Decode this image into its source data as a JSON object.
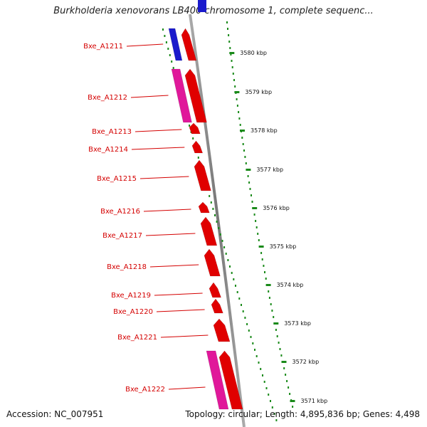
{
  "title": "Burkholderia xenovorans LB400 chromosome 1, complete sequenc...",
  "footer": {
    "accession": "Accession: NC_007951",
    "topology": "Topology: circular; Length: 4,895,836 bp; Genes: 4,498"
  },
  "ticks": [
    "3580 kbp",
    "3579 kbp",
    "3578 kbp",
    "3577 kbp",
    "3576 kbp",
    "3575 kbp",
    "3574 kbp",
    "3573 kbp",
    "3572 kbp",
    "3571 kbp"
  ],
  "genes": [
    {
      "label": "Bxe_A1211",
      "strand": "minus-pair",
      "colors": [
        "#1a1acc",
        "#e00000"
      ]
    },
    {
      "label": "Bxe_A1212",
      "strand": "minus-pair",
      "colors": [
        "#e0189a",
        "#e00000"
      ]
    },
    {
      "label": "Bxe_A1213",
      "colors": [
        "#e00000"
      ]
    },
    {
      "label": "Bxe_A1214",
      "colors": [
        "#e00000"
      ]
    },
    {
      "label": "Bxe_A1215",
      "colors": [
        "#e00000"
      ]
    },
    {
      "label": "Bxe_A1216",
      "colors": [
        "#e00000"
      ]
    },
    {
      "label": "Bxe_A1217",
      "colors": [
        "#e00000"
      ]
    },
    {
      "label": "Bxe_A1218",
      "colors": [
        "#e00000"
      ]
    },
    {
      "label": "Bxe_A1219",
      "colors": [
        "#e00000"
      ]
    },
    {
      "label": "Bxe_A1220",
      "colors": [
        "#e00000"
      ]
    },
    {
      "label": "Bxe_A1221",
      "colors": [
        "#e00000"
      ]
    },
    {
      "label": "Bxe_A1222",
      "colors": [
        "#e0189a",
        "#e00000"
      ]
    }
  ],
  "colors": {
    "label": "#d40000",
    "tick": "#1a8a1a",
    "backbone": "#888888"
  }
}
